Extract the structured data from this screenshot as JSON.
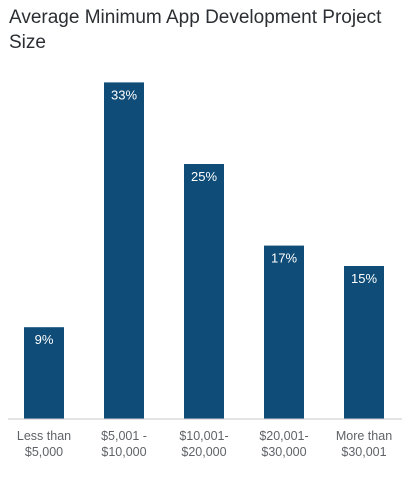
{
  "chart_data": {
    "type": "bar",
    "title": "Average Minimum App Development Project Size",
    "categories": [
      "Less than $5,000",
      "$5,001 - $10,000",
      "$10,001- $20,000",
      "$20,001- $30,000",
      "More than $30,001"
    ],
    "category_lines": [
      [
        "Less than",
        "$5,000"
      ],
      [
        "$5,001 -",
        "$10,000"
      ],
      [
        "$10,001-",
        "$20,000"
      ],
      [
        "$20,001-",
        "$30,000"
      ],
      [
        "More than",
        "$30,001"
      ]
    ],
    "values": [
      9,
      33,
      25,
      17,
      15
    ],
    "data_labels": [
      "9%",
      "33%",
      "25%",
      "17%",
      "15%"
    ],
    "unit": "%",
    "ylim": [
      0,
      37
    ],
    "grid": false,
    "legend": "none",
    "bar_color": "#0f4c77",
    "baseline_color": "#c8c8c8",
    "label_color": "#ffffff",
    "tick_label_color": "#5f6368"
  }
}
